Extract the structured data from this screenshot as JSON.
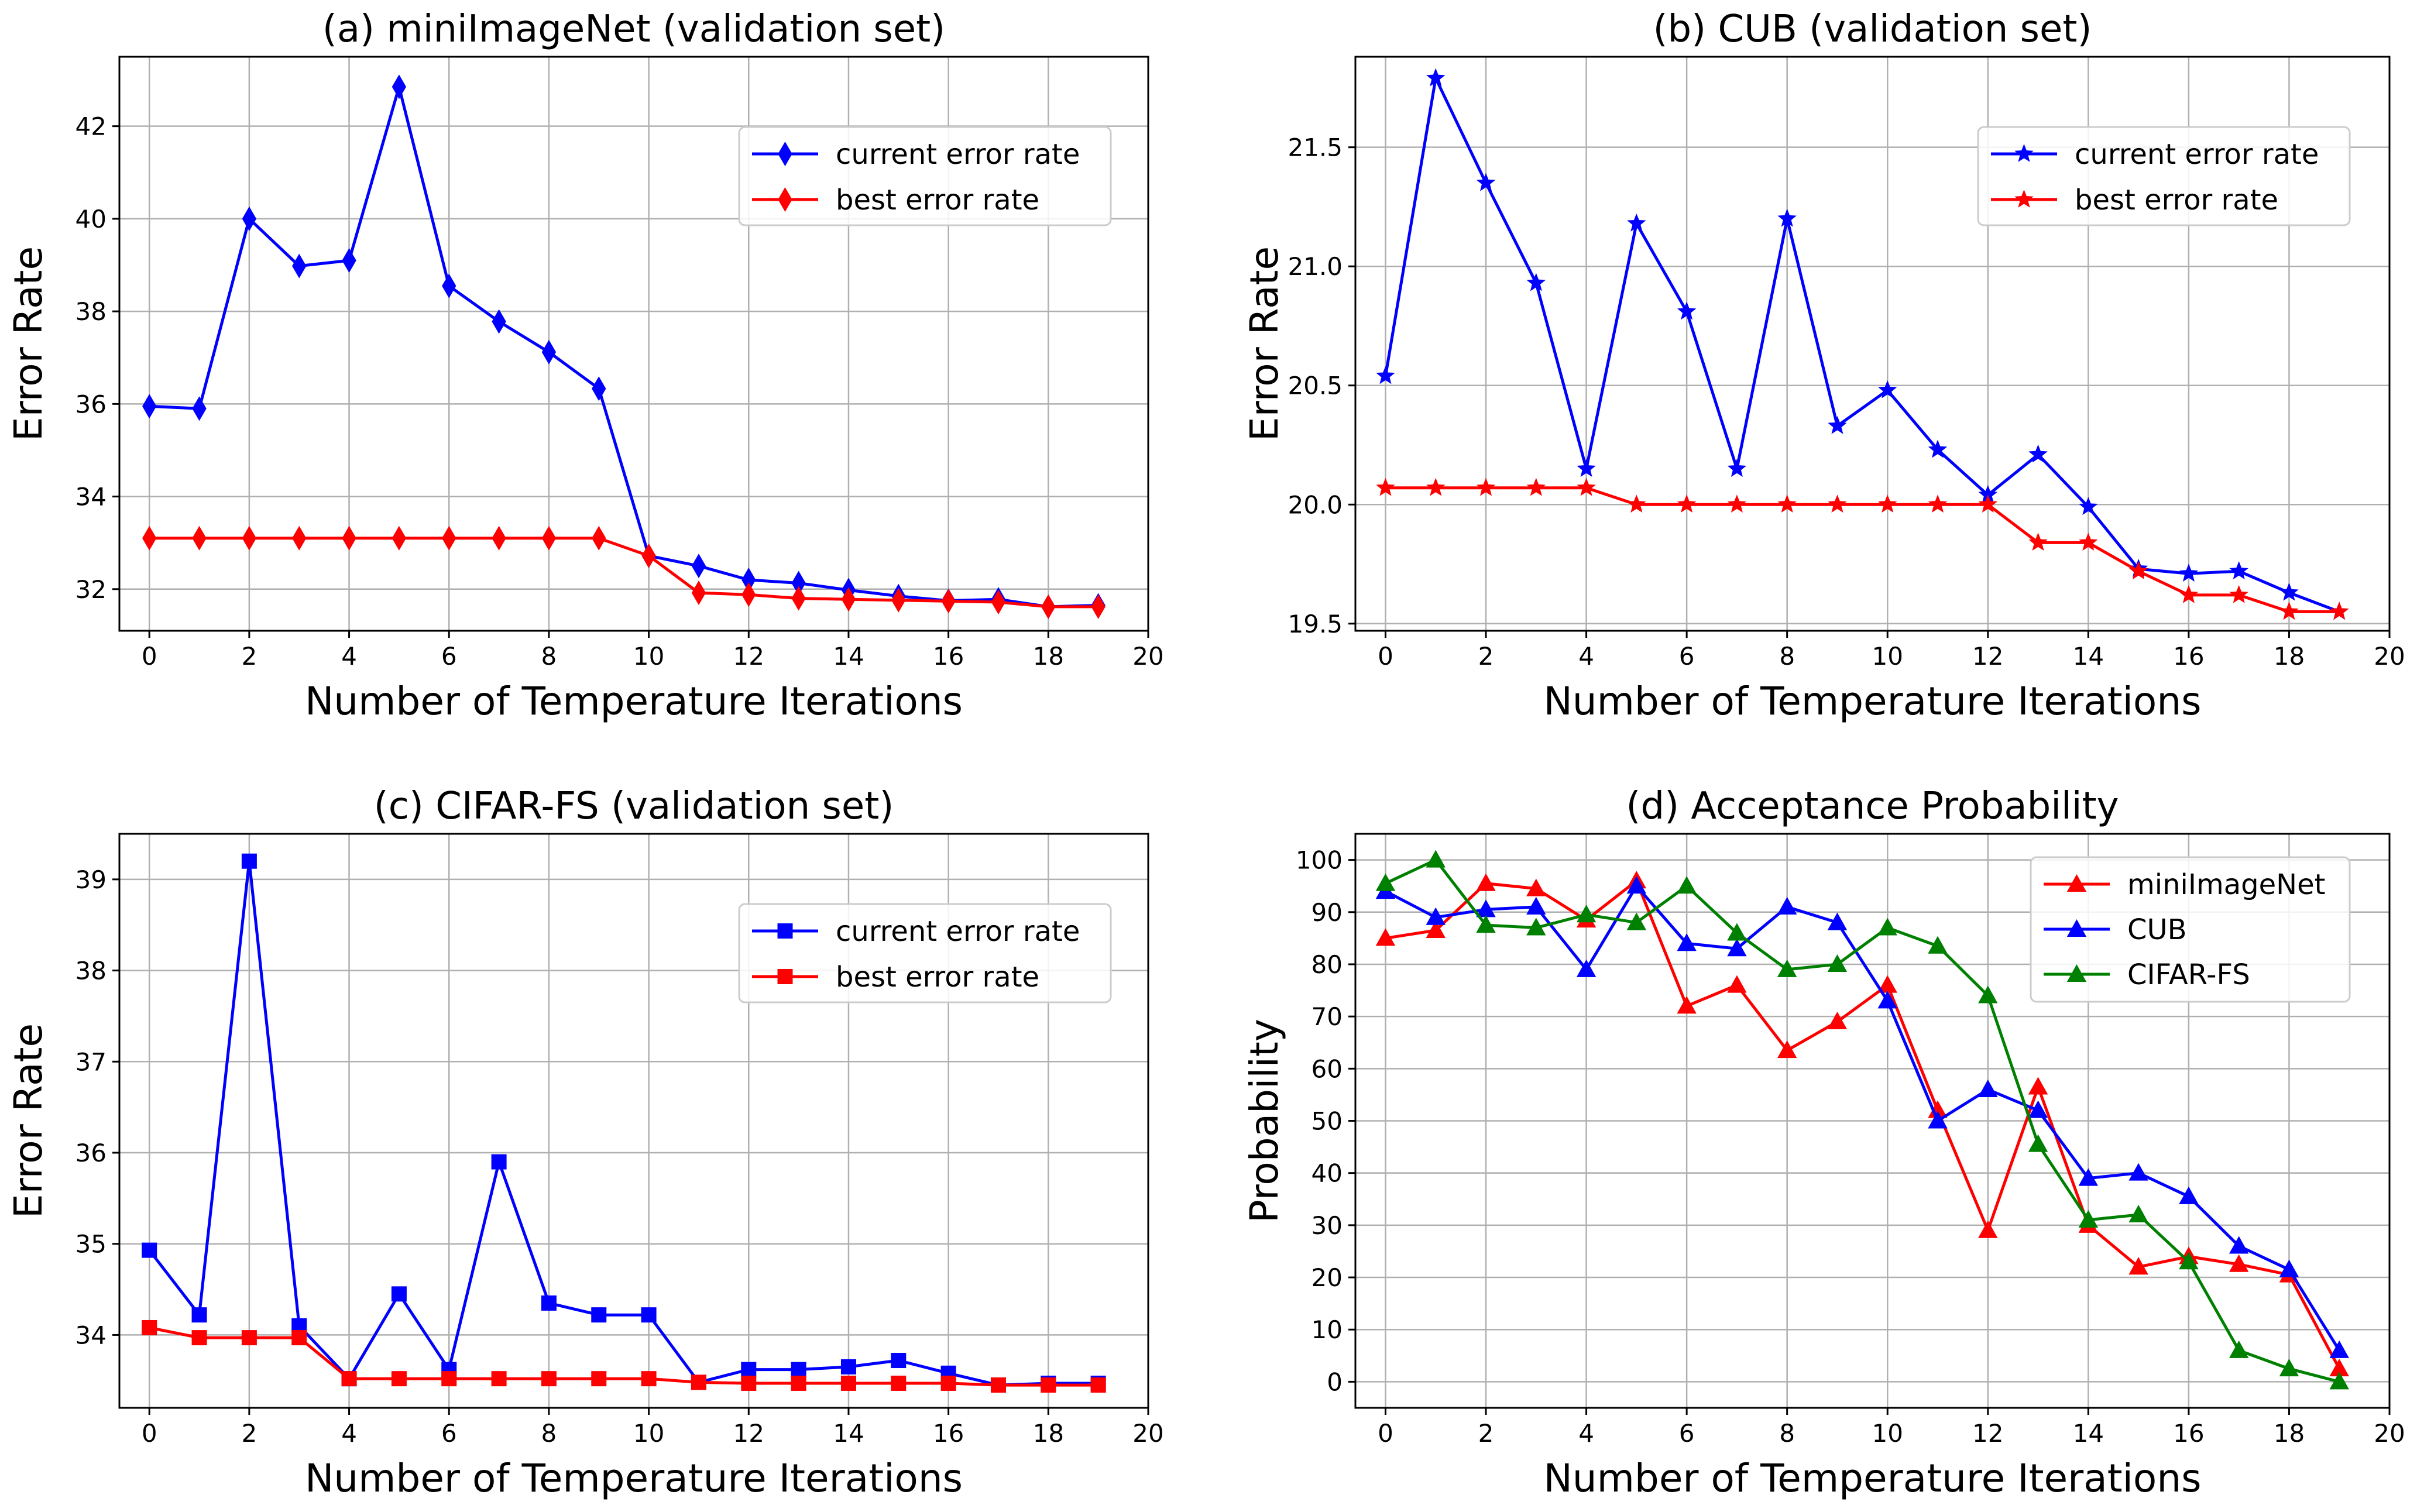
{
  "chart_data": [
    {
      "type": "line",
      "title": "(a) miniImageNet (validation set)",
      "xlabel": "Number of Temperature Iterations",
      "ylabel": "Error Rate",
      "xlim": [
        -0.6,
        20
      ],
      "ylim": [
        31.1,
        43.5
      ],
      "xticks": [
        0,
        2,
        4,
        6,
        8,
        10,
        12,
        14,
        16,
        18,
        20
      ],
      "yticks": [
        32,
        34,
        36,
        38,
        40,
        42
      ],
      "grid": true,
      "legend": "upper right",
      "x": [
        0,
        1,
        2,
        3,
        4,
        5,
        6,
        7,
        8,
        9,
        10,
        11,
        12,
        13,
        14,
        15,
        16,
        17,
        18,
        19
      ],
      "series": [
        {
          "name": "current error rate",
          "color": "#0000ff",
          "marker": "diamond",
          "values": [
            35.95,
            35.9,
            40.0,
            38.98,
            39.1,
            42.85,
            38.55,
            37.78,
            37.12,
            36.33,
            32.72,
            32.5,
            32.2,
            32.13,
            31.98,
            31.85,
            31.75,
            31.78,
            31.62,
            31.65
          ]
        },
        {
          "name": "best error rate",
          "color": "#ff0000",
          "marker": "diamond",
          "values": [
            33.1,
            33.1,
            33.1,
            33.1,
            33.1,
            33.1,
            33.1,
            33.1,
            33.1,
            33.1,
            32.72,
            31.92,
            31.88,
            31.8,
            31.78,
            31.76,
            31.74,
            31.72,
            31.62,
            31.62
          ]
        }
      ]
    },
    {
      "type": "line",
      "title": "(b) CUB (validation set)",
      "xlabel": "Number of Temperature Iterations",
      "ylabel": "Error Rate",
      "xlim": [
        -0.6,
        20
      ],
      "ylim": [
        19.47,
        21.88
      ],
      "xticks": [
        0,
        2,
        4,
        6,
        8,
        10,
        12,
        14,
        16,
        18,
        20
      ],
      "yticks": [
        19.5,
        20.0,
        20.5,
        21.0,
        21.5
      ],
      "grid": true,
      "legend": "upper right",
      "x": [
        0,
        1,
        2,
        3,
        4,
        5,
        6,
        7,
        8,
        9,
        10,
        11,
        12,
        13,
        14,
        15,
        16,
        17,
        18,
        19
      ],
      "series": [
        {
          "name": "current error rate",
          "color": "#0000ff",
          "marker": "star",
          "values": [
            20.54,
            21.79,
            21.35,
            20.93,
            20.15,
            21.18,
            20.81,
            20.15,
            21.2,
            20.33,
            20.48,
            20.23,
            20.04,
            20.21,
            19.99,
            19.73,
            19.71,
            19.72,
            19.63,
            19.55
          ]
        },
        {
          "name": "best error rate",
          "color": "#ff0000",
          "marker": "star",
          "values": [
            20.07,
            20.07,
            20.07,
            20.07,
            20.07,
            20.0,
            20.0,
            20.0,
            20.0,
            20.0,
            20.0,
            20.0,
            20.0,
            19.84,
            19.84,
            19.72,
            19.62,
            19.62,
            19.55,
            19.55
          ]
        }
      ]
    },
    {
      "type": "line",
      "title": "(c) CIFAR-FS (validation set)",
      "xlabel": "Number of Temperature Iterations",
      "ylabel": "Error Rate",
      "xlim": [
        -0.6,
        20
      ],
      "ylim": [
        33.2,
        39.5
      ],
      "xticks": [
        0,
        2,
        4,
        6,
        8,
        10,
        12,
        14,
        16,
        18,
        20
      ],
      "yticks": [
        34,
        35,
        36,
        37,
        38,
        39
      ],
      "grid": true,
      "legend": "upper right",
      "x": [
        0,
        1,
        2,
        3,
        4,
        5,
        6,
        7,
        8,
        9,
        10,
        11,
        12,
        13,
        14,
        15,
        16,
        17,
        18,
        19
      ],
      "series": [
        {
          "name": "current error rate",
          "color": "#0000ff",
          "marker": "square",
          "values": [
            34.93,
            34.22,
            39.2,
            34.1,
            33.52,
            34.45,
            33.62,
            35.9,
            34.35,
            34.22,
            34.22,
            33.48,
            33.62,
            33.62,
            33.65,
            33.72,
            33.58,
            33.45,
            33.47,
            33.47
          ]
        },
        {
          "name": "best error rate",
          "color": "#ff0000",
          "marker": "square",
          "values": [
            34.08,
            33.97,
            33.97,
            33.97,
            33.52,
            33.52,
            33.52,
            33.52,
            33.52,
            33.52,
            33.52,
            33.48,
            33.47,
            33.47,
            33.47,
            33.47,
            33.47,
            33.45,
            33.45,
            33.45
          ]
        }
      ]
    },
    {
      "type": "line",
      "title": "(d) Acceptance Probability",
      "xlabel": "Number of Temperature Iterations",
      "ylabel": "Probability",
      "xlim": [
        -0.6,
        20
      ],
      "ylim": [
        -5,
        105
      ],
      "xticks": [
        0,
        2,
        4,
        6,
        8,
        10,
        12,
        14,
        16,
        18,
        20
      ],
      "yticks": [
        0,
        10,
        20,
        30,
        40,
        50,
        60,
        70,
        80,
        90,
        100
      ],
      "grid": true,
      "legend": "upper right",
      "x": [
        0,
        1,
        2,
        3,
        4,
        5,
        6,
        7,
        8,
        9,
        10,
        11,
        12,
        13,
        14,
        15,
        16,
        17,
        18,
        19
      ],
      "series": [
        {
          "name": "miniImageNet",
          "color": "#ff0000",
          "marker": "triangle",
          "values": [
            85,
            86.5,
            95.5,
            94.5,
            88.5,
            96,
            72,
            76,
            63.5,
            69,
            76,
            52,
            29,
            56.5,
            30,
            22,
            24,
            22.5,
            20.5,
            2.5
          ]
        },
        {
          "name": "CUB",
          "color": "#0000ff",
          "marker": "triangle",
          "values": [
            94,
            89,
            90.5,
            91,
            79,
            95,
            84,
            83,
            91,
            88,
            73,
            50,
            56,
            52,
            39,
            40,
            35.5,
            26,
            21.5,
            6
          ]
        },
        {
          "name": "CIFAR-FS",
          "color": "#008000",
          "marker": "triangle",
          "values": [
            95.5,
            100,
            87.5,
            87,
            89.5,
            88,
            95,
            86,
            79,
            80,
            87,
            83.5,
            74,
            45.5,
            31,
            32,
            23,
            6,
            2.5,
            0
          ]
        }
      ]
    }
  ]
}
